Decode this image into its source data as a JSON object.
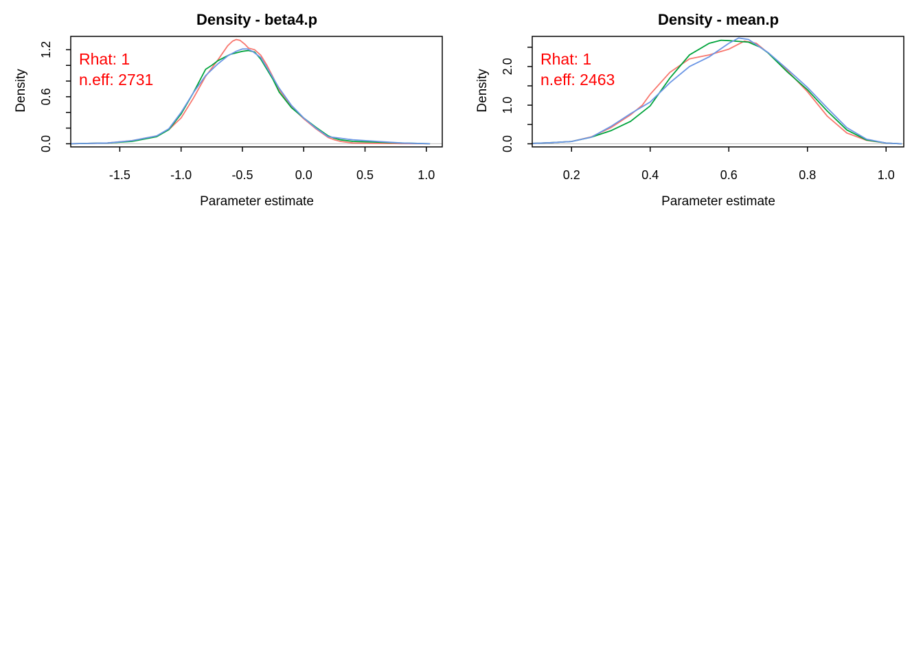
{
  "colors": {
    "chain1": "#F8766D",
    "chain2": "#00A33B",
    "chain3": "#6A95E5",
    "stats": "#FF0000",
    "baseline": "#BEBEBE"
  },
  "chart_data": [
    {
      "type": "line",
      "title": "Density - beta4.p",
      "xlabel": "Parameter estimate",
      "ylabel": "Density",
      "xlim": [
        -1.9,
        1.13
      ],
      "ylim": [
        -0.04,
        1.37
      ],
      "xticks": [
        -1.5,
        -1.0,
        -0.5,
        0.0,
        0.5,
        1.0
      ],
      "xtick_labels": [
        "-1.5",
        "-1.0",
        "-0.5",
        "0.0",
        "0.5",
        "1.0"
      ],
      "yticks": [
        0.0,
        0.2,
        0.4,
        0.6,
        0.8,
        1.0,
        1.2
      ],
      "ytick_labels": [
        "0.0",
        "",
        "",
        "0.6",
        "",
        "",
        "1.2"
      ],
      "stats": [
        "Rhat: 1",
        "n.eff: 2731"
      ],
      "series": [
        {
          "color": "#F8766D",
          "x": [
            -1.9,
            -1.6,
            -1.4,
            -1.2,
            -1.1,
            -1.0,
            -0.9,
            -0.8,
            -0.7,
            -0.62,
            -0.58,
            -0.55,
            -0.52,
            -0.48,
            -0.45,
            -0.4,
            -0.35,
            -0.3,
            -0.25,
            -0.2,
            -0.1,
            0.0,
            0.1,
            0.2,
            0.25,
            0.3,
            0.4,
            0.6,
            0.8,
            1.03
          ],
          "y": [
            0.0,
            0.01,
            0.04,
            0.1,
            0.18,
            0.33,
            0.58,
            0.86,
            1.07,
            1.25,
            1.31,
            1.33,
            1.32,
            1.27,
            1.22,
            1.2,
            1.13,
            1.0,
            0.85,
            0.69,
            0.47,
            0.32,
            0.19,
            0.08,
            0.05,
            0.03,
            0.01,
            0.005,
            0.002,
            0.0
          ]
        },
        {
          "color": "#00A33B",
          "x": [
            -1.9,
            -1.6,
            -1.4,
            -1.2,
            -1.1,
            -1.0,
            -0.9,
            -0.8,
            -0.75,
            -0.7,
            -0.65,
            -0.6,
            -0.55,
            -0.5,
            -0.45,
            -0.4,
            -0.35,
            -0.3,
            -0.25,
            -0.2,
            -0.1,
            0.0,
            0.1,
            0.2,
            0.25,
            0.3,
            0.4,
            0.6,
            0.8,
            1.03
          ],
          "y": [
            0.0,
            0.01,
            0.03,
            0.09,
            0.18,
            0.38,
            0.65,
            0.95,
            1.0,
            1.06,
            1.1,
            1.14,
            1.16,
            1.18,
            1.19,
            1.17,
            1.08,
            0.95,
            0.82,
            0.66,
            0.46,
            0.33,
            0.21,
            0.1,
            0.07,
            0.05,
            0.03,
            0.02,
            0.01,
            0.0
          ]
        },
        {
          "color": "#6A95E5",
          "x": [
            -1.9,
            -1.6,
            -1.4,
            -1.2,
            -1.1,
            -1.0,
            -0.9,
            -0.8,
            -0.7,
            -0.62,
            -0.55,
            -0.5,
            -0.46,
            -0.42,
            -0.35,
            -0.3,
            -0.25,
            -0.2,
            -0.1,
            0.0,
            0.1,
            0.2,
            0.3,
            0.4,
            0.6,
            0.8,
            1.03
          ],
          "y": [
            0.0,
            0.01,
            0.04,
            0.1,
            0.19,
            0.4,
            0.65,
            0.87,
            1.02,
            1.12,
            1.18,
            1.21,
            1.21,
            1.18,
            1.1,
            0.97,
            0.84,
            0.71,
            0.49,
            0.33,
            0.2,
            0.09,
            0.07,
            0.05,
            0.03,
            0.01,
            0.0
          ]
        }
      ]
    },
    {
      "type": "line",
      "title": "Density - mean.p",
      "xlabel": "Parameter estimate",
      "ylabel": "Density",
      "xlim": [
        0.1,
        1.045
      ],
      "ylim": [
        -0.08,
        2.78
      ],
      "xticks": [
        0.2,
        0.4,
        0.6,
        0.8,
        1.0
      ],
      "xtick_labels": [
        "0.2",
        "0.4",
        "0.6",
        "0.8",
        "1.0"
      ],
      "yticks": [
        0.0,
        0.5,
        1.0,
        1.5,
        2.0,
        2.5
      ],
      "ytick_labels": [
        "0.0",
        "",
        "1.0",
        "",
        "2.0",
        ""
      ],
      "stats": [
        "Rhat: 1",
        "n.eff: 2463"
      ],
      "series": [
        {
          "color": "#F8766D",
          "x": [
            0.1,
            0.15,
            0.2,
            0.25,
            0.3,
            0.35,
            0.38,
            0.4,
            0.45,
            0.5,
            0.55,
            0.6,
            0.64,
            0.67,
            0.7,
            0.75,
            0.8,
            0.85,
            0.9,
            0.95,
            1.0,
            1.04
          ],
          "y": [
            0.01,
            0.03,
            0.06,
            0.18,
            0.42,
            0.75,
            1.0,
            1.28,
            1.85,
            2.2,
            2.3,
            2.45,
            2.66,
            2.6,
            2.35,
            1.88,
            1.35,
            0.72,
            0.28,
            0.09,
            0.02,
            0.0
          ]
        },
        {
          "color": "#00A33B",
          "x": [
            0.1,
            0.15,
            0.2,
            0.25,
            0.3,
            0.35,
            0.4,
            0.45,
            0.5,
            0.55,
            0.58,
            0.6,
            0.65,
            0.68,
            0.7,
            0.75,
            0.8,
            0.85,
            0.9,
            0.95,
            1.0,
            1.04
          ],
          "y": [
            0.01,
            0.03,
            0.06,
            0.17,
            0.34,
            0.58,
            0.98,
            1.7,
            2.3,
            2.6,
            2.68,
            2.67,
            2.63,
            2.5,
            2.35,
            1.85,
            1.4,
            0.85,
            0.36,
            0.1,
            0.02,
            0.0
          ]
        },
        {
          "color": "#6A95E5",
          "x": [
            0.1,
            0.15,
            0.2,
            0.25,
            0.3,
            0.35,
            0.4,
            0.45,
            0.5,
            0.55,
            0.6,
            0.625,
            0.65,
            0.7,
            0.75,
            0.8,
            0.85,
            0.9,
            0.95,
            1.0,
            1.04
          ],
          "y": [
            0.01,
            0.03,
            0.06,
            0.17,
            0.45,
            0.78,
            1.08,
            1.58,
            2.0,
            2.25,
            2.6,
            2.74,
            2.7,
            2.36,
            1.92,
            1.46,
            0.93,
            0.42,
            0.12,
            0.02,
            0.0
          ]
        }
      ]
    }
  ]
}
